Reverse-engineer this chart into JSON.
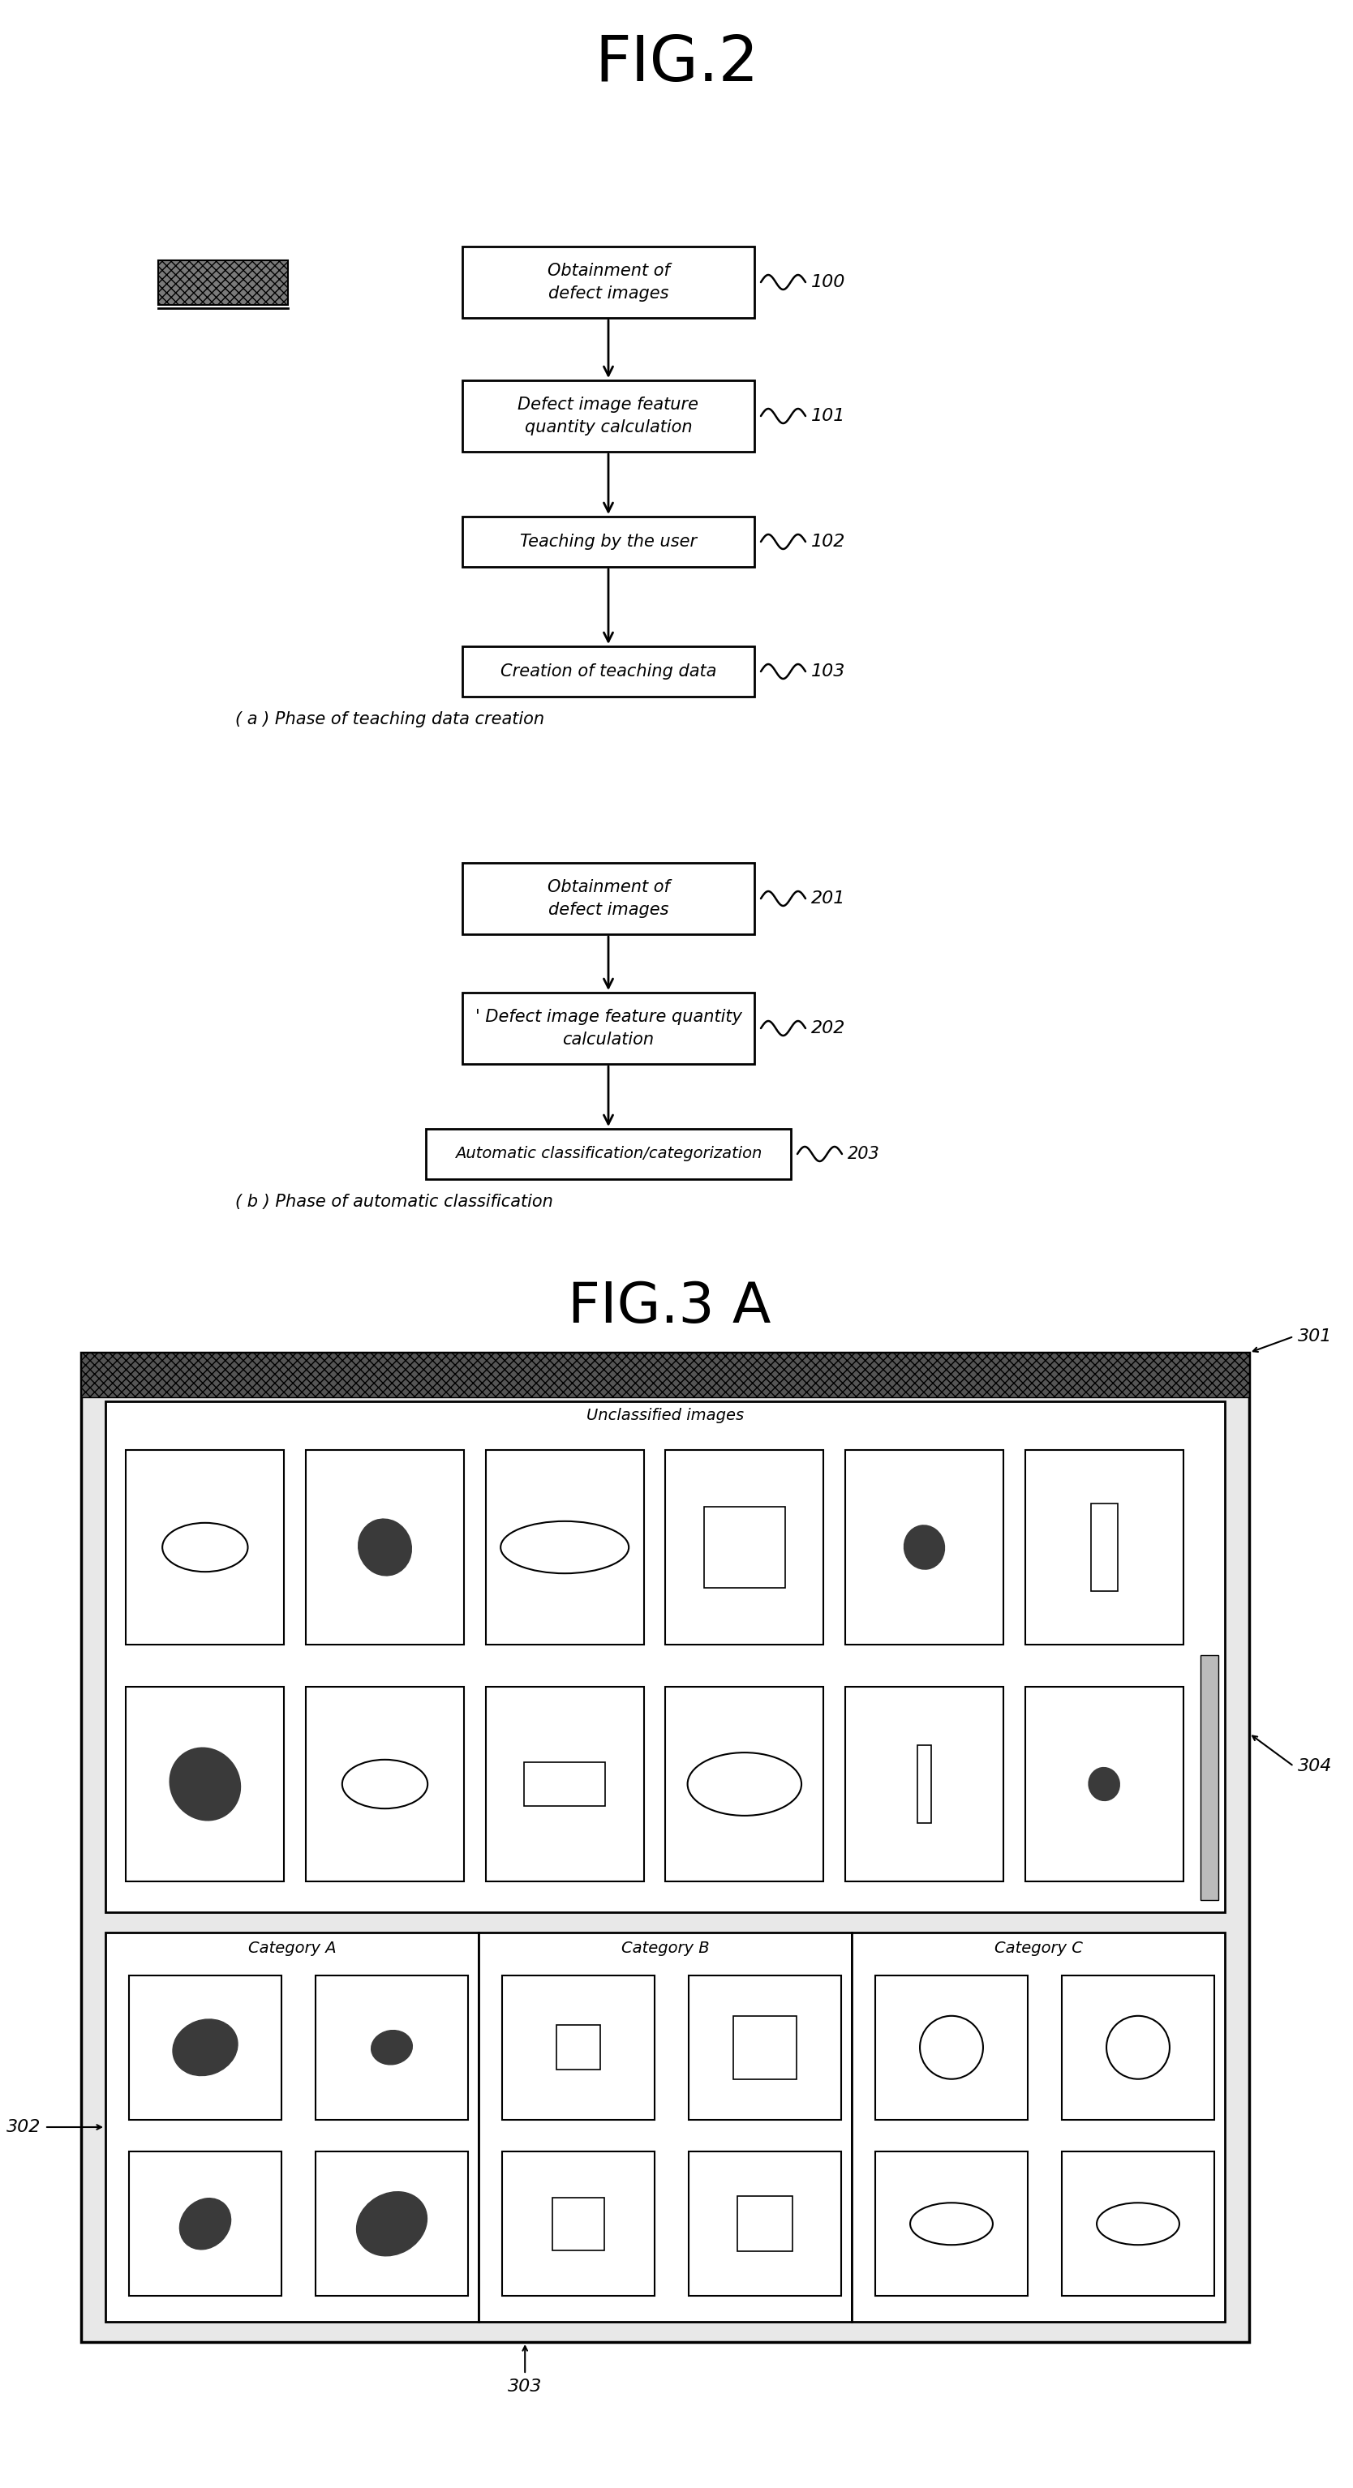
{
  "bg_color": "#ffffff",
  "fig2_title": "FIG.2",
  "fig3_title": "FIG.3 A",
  "section_a_boxes": [
    {
      "text": "Obtainment of\ndefect images",
      "ref": "100",
      "two_line": true
    },
    {
      "text": "Defect image feature\nquantity calculation",
      "ref": "101",
      "two_line": true
    },
    {
      "text": "Teaching by the user",
      "ref": "102",
      "two_line": false
    },
    {
      "text": "Creation of teaching data",
      "ref": "103",
      "two_line": false
    }
  ],
  "section_a_caption": "( a ) Phase of teaching data creation",
  "section_b_boxes": [
    {
      "text": "Obtainment of\ndefect images",
      "ref": "201",
      "two_line": true
    },
    {
      "text": "' Defect image feature quantity\ncalculation",
      "ref": "202",
      "two_line": true
    },
    {
      "text": "Automatic classification/categorization",
      "ref": "203",
      "two_line": false
    }
  ],
  "section_b_caption": "( b ) Phase of automatic classification",
  "unclassified_label": "Unclassified images",
  "category_labels": [
    "Category A",
    "Category B",
    "Category C"
  ],
  "ref301": "301",
  "ref302": "302",
  "ref303": "303",
  "ref304": "304",
  "unclassified_grid": [
    [
      0,
      0,
      "ellipse_h_sm"
    ],
    [
      0,
      1,
      "blob_dark"
    ],
    [
      0,
      2,
      "ellipse_h_lg"
    ],
    [
      0,
      3,
      "square_sm"
    ],
    [
      0,
      4,
      "blob_dark_sm"
    ],
    [
      0,
      5,
      "rect_v_sm"
    ],
    [
      1,
      0,
      "blob_dark_lg"
    ],
    [
      1,
      1,
      "ellipse_h_sm"
    ],
    [
      1,
      2,
      "rect_h_sm"
    ],
    [
      1,
      3,
      "ellipse_h_md"
    ],
    [
      1,
      4,
      "rect_v_tiny"
    ],
    [
      1,
      5,
      "blob_dark_tiny"
    ]
  ],
  "cat_a_grid": [
    [
      0,
      0,
      "blob_rough_md"
    ],
    [
      0,
      1,
      "blob_rough_sm"
    ],
    [
      1,
      0,
      "blob_rough_sm2"
    ],
    [
      1,
      1,
      "blob_rough_lg"
    ]
  ],
  "cat_b_grid": [
    [
      0,
      0,
      "square_tiny"
    ],
    [
      0,
      1,
      "square_md"
    ],
    [
      1,
      0,
      "square_sm2"
    ],
    [
      1,
      1,
      "square_sm3"
    ]
  ],
  "cat_c_grid": [
    [
      0,
      0,
      "circle_lg"
    ],
    [
      0,
      1,
      "circle_lg"
    ],
    [
      1,
      0,
      "ellipse_h_flat"
    ],
    [
      1,
      1,
      "ellipse_h_flat"
    ]
  ]
}
